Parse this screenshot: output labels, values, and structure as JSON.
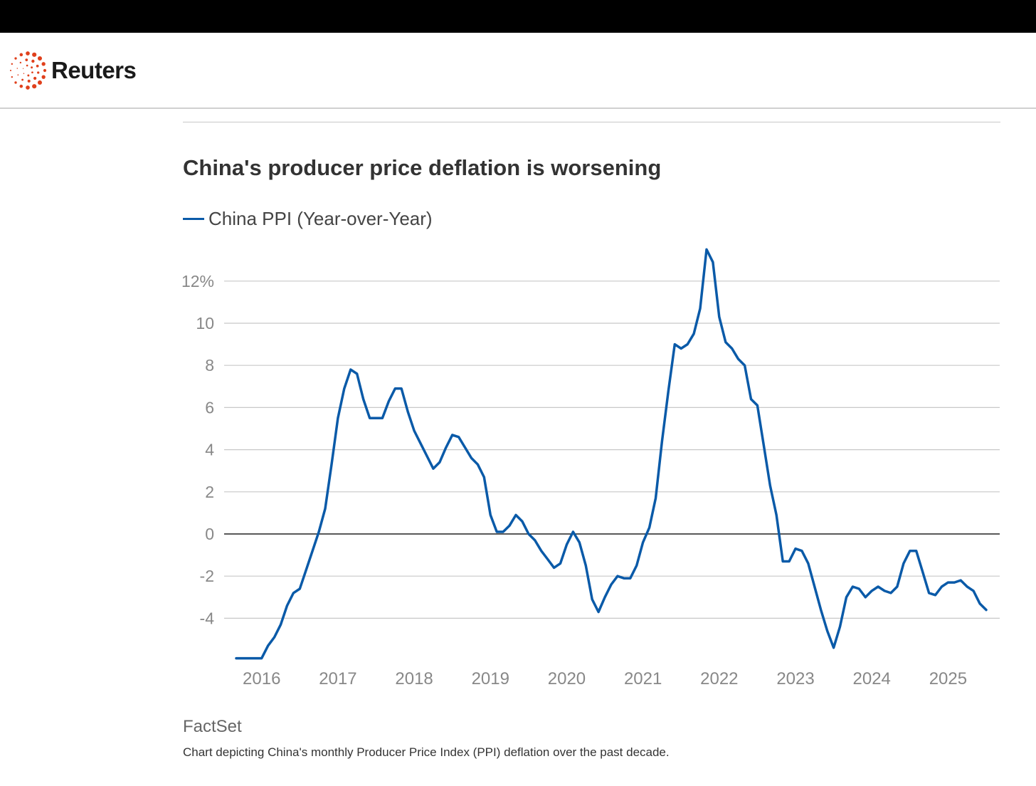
{
  "header": {
    "brand": "Reuters"
  },
  "chart_data": {
    "type": "line",
    "title": "China's producer price deflation is worsening",
    "legend": [
      "China PPI (Year-over-Year)"
    ],
    "legend_placement": "top-left",
    "series": [
      {
        "name": "China PPI (Year-over-Year)",
        "color": "#0a5aa8",
        "start": "2015-08",
        "frequency": "monthly",
        "values": [
          -5.9,
          -5.9,
          -5.9,
          -5.9,
          -5.9,
          -5.3,
          -4.9,
          -4.3,
          -3.4,
          -2.8,
          -2.6,
          -1.7,
          -0.8,
          0.1,
          1.2,
          3.3,
          5.5,
          6.9,
          7.8,
          7.6,
          6.4,
          5.5,
          5.5,
          5.5,
          6.3,
          6.9,
          6.9,
          5.8,
          4.9,
          4.3,
          3.7,
          3.1,
          3.4,
          4.1,
          4.7,
          4.6,
          4.1,
          3.6,
          3.3,
          2.7,
          0.9,
          0.1,
          0.1,
          0.4,
          0.9,
          0.6,
          0.0,
          -0.3,
          -0.8,
          -1.2,
          -1.6,
          -1.4,
          -0.5,
          0.1,
          -0.4,
          -1.5,
          -3.1,
          -3.7,
          -3.0,
          -2.4,
          -2.0,
          -2.1,
          -2.1,
          -1.5,
          -0.4,
          0.3,
          1.7,
          4.4,
          6.8,
          9.0,
          8.8,
          9.0,
          9.5,
          10.7,
          13.5,
          12.9,
          10.3,
          9.1,
          8.8,
          8.3,
          8.0,
          6.4,
          6.1,
          4.2,
          2.3,
          0.9,
          -1.3,
          -1.3,
          -0.7,
          -0.8,
          -1.4,
          -2.5,
          -3.6,
          -4.6,
          -5.4,
          -4.4,
          -3.0,
          -2.5,
          -2.6,
          -3.0,
          -2.7,
          -2.5,
          -2.7,
          -2.8,
          -2.5,
          -1.4,
          -0.8,
          -0.8,
          -1.8,
          -2.8,
          -2.9,
          -2.5,
          -2.3,
          -2.3,
          -2.2,
          -2.5,
          -2.7,
          -3.3,
          -3.6
        ]
      }
    ],
    "x_tick_labels": [
      "2016",
      "2017",
      "2018",
      "2019",
      "2020",
      "2021",
      "2022",
      "2023",
      "2024",
      "2025"
    ],
    "y_ticks": [
      12,
      10,
      8,
      6,
      4,
      2,
      0,
      -2,
      -4
    ],
    "y_tick_labels": [
      "12%",
      "10",
      "8",
      "6",
      "4",
      "2",
      "0",
      "-2",
      "-4"
    ],
    "ylim": [
      -6,
      13.5
    ],
    "grid": true,
    "xlabel": "",
    "ylabel": ""
  },
  "footer": {
    "source": "FactSet",
    "caption": "Chart depicting China's monthly Producer Price Index (PPI) deflation over the past decade."
  }
}
